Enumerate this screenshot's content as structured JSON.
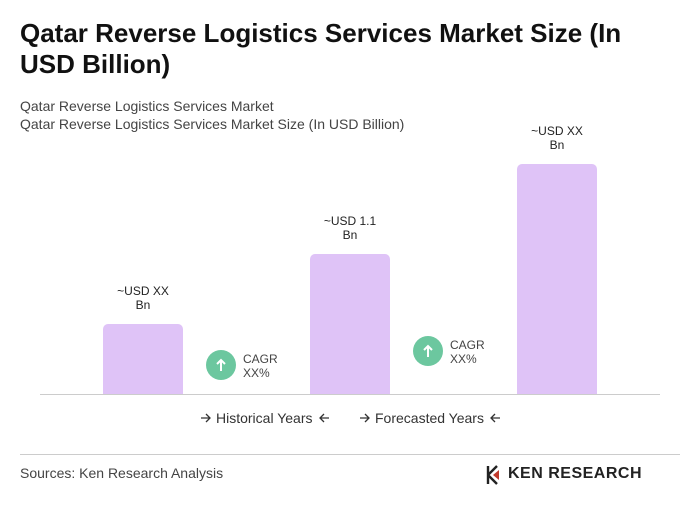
{
  "chart_data": {
    "type": "bar",
    "title": "Qatar Reverse Logistics Services Market Size (In USD Billion)",
    "subtitle": "Qatar Reverse Logistics Services Market",
    "y_label": "Qatar Reverse Logistics Services Market Size (In USD Billion)",
    "categories": [
      null,
      null,
      null
    ],
    "values": [
      0.55,
      1.1,
      1.81
    ],
    "value_labels": [
      "~USD XX Bn",
      "~USD 1.1 Bn",
      "~USD XX Bn"
    ],
    "color": "#dfc3f7",
    "annotations": [
      "CAGR XX%",
      "CAGR XX%"
    ],
    "annotation_color": "#6cc79f",
    "legend": [
      "Historical Years",
      "Forecasted Years"
    ],
    "source": "Sources: Ken Research Analysis",
    "logo": "KEN RESEARCH"
  }
}
